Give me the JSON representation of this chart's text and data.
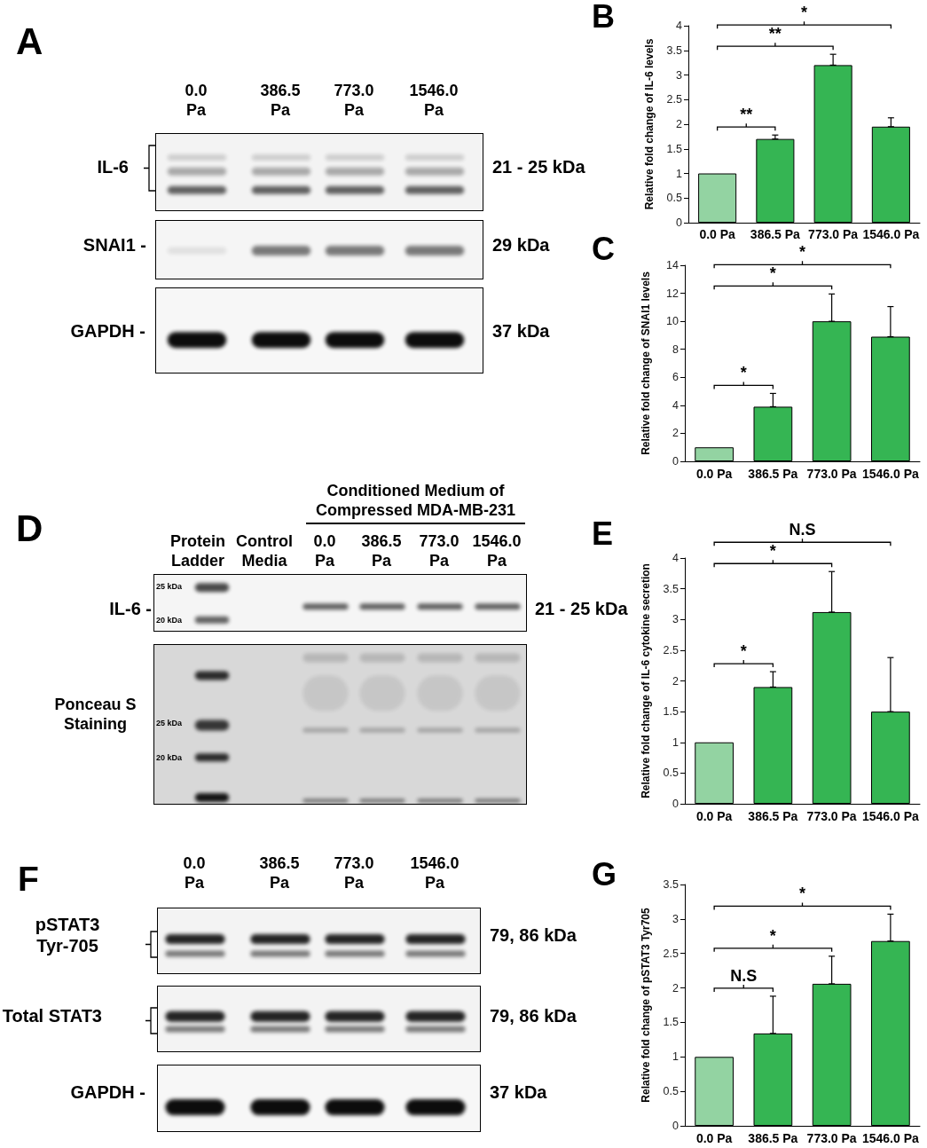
{
  "chart_data": [
    {
      "type": "other",
      "title": "A",
      "categories": [
        "0.0 Pa",
        "386.5 Pa",
        "773.0 Pa",
        "1546.0 Pa"
      ],
      "y_categories": [
        "IL-6",
        "SNAI1 -",
        "GAPDH -"
      ],
      "y2_categories": [
        "21 - 25 kDa",
        "29 kDa",
        "37 kDa"
      ]
    },
    {
      "type": "bar",
      "title": "B",
      "ylabel": "Relative fold change of IL-6 levels",
      "categories": [
        "0.0 Pa",
        "386.5 Pa",
        "773.0 Pa",
        "1546.0 Pa"
      ],
      "values": [
        1,
        1.7,
        3.2,
        1.95
      ],
      "colors": [
        "#93d3a2",
        "#35b553",
        "#35b553",
        "#35b553"
      ],
      "errors": [
        null,
        [
          1.7,
          1.78
        ],
        [
          3.2,
          3.42
        ],
        [
          1.95,
          2.13
        ]
      ],
      "ylim": [
        0,
        4
      ],
      "yticks": [
        0,
        0.5,
        1,
        1.5,
        2,
        2.5,
        3,
        3.5,
        4
      ],
      "annotations": [
        "**",
        "**",
        "*"
      ]
    },
    {
      "type": "bar",
      "title": "C",
      "ylabel": "Relative fold change of SNAI1 levels",
      "categories": [
        "0.0 Pa",
        "386.5 Pa",
        "773.0 Pa",
        "1546.0 Pa"
      ],
      "values": [
        1,
        3.9,
        10,
        8.9
      ],
      "colors": [
        "#93d3a2",
        "#35b553",
        "#35b553",
        "#35b553"
      ],
      "errors": [
        null,
        [
          3.9,
          4.85
        ],
        [
          10,
          11.95
        ],
        [
          8.9,
          11.05
        ]
      ],
      "ylim": [
        0,
        14
      ],
      "yticks": [
        0,
        2,
        4,
        6,
        8,
        10,
        12,
        14
      ],
      "annotations": [
        "*",
        "*",
        "*"
      ]
    },
    {
      "type": "other",
      "title": "D",
      "subtitle": "Conditioned Medium of Compressed MDA-MB-231",
      "categories": [
        "Protein Ladder",
        "Control Media",
        "0.0 Pa",
        "386.5 Pa",
        "773.0 Pa",
        "1546.0 Pa"
      ],
      "y_categories": [
        "IL-6 -",
        "Ponceau S Staining"
      ],
      "y2_categories": [
        "21 - 25 kDa",
        null
      ],
      "annotations": [
        "25 kDa",
        "20 kDa",
        "25 kDa",
        "20 kDa"
      ]
    },
    {
      "type": "bar",
      "title": "E",
      "ylabel": "Relative fold change of IL-6 cytokine secretion",
      "categories": [
        "0.0 Pa",
        "386.5 Pa",
        "773.0 Pa",
        "1546.0 Pa"
      ],
      "values": [
        1,
        1.9,
        3.12,
        1.5
      ],
      "colors": [
        "#93d3a2",
        "#35b553",
        "#35b553",
        "#35b553"
      ],
      "errors": [
        null,
        [
          1.9,
          2.15
        ],
        [
          3.12,
          3.78
        ],
        [
          1.5,
          2.38
        ]
      ],
      "ylim": [
        0,
        4
      ],
      "yticks": [
        0,
        0.5,
        1,
        1.5,
        2,
        2.5,
        3,
        3.5,
        4
      ],
      "annotations": [
        "*",
        "*",
        "N.S"
      ]
    },
    {
      "type": "other",
      "title": "F",
      "categories": [
        "0.0 Pa",
        "386.5 Pa",
        "773.0 Pa",
        "1546.0 Pa"
      ],
      "y_categories": [
        "pSTAT3 Tyr-705",
        "Total STAT3",
        "GAPDH -"
      ],
      "y2_categories": [
        "79, 86 kDa",
        "79, 86 kDa",
        "37 kDa"
      ]
    },
    {
      "type": "bar",
      "title": "G",
      "ylabel": "Relative fold change of pSTAT3 Tyr705",
      "categories": [
        "0.0 Pa",
        "386.5 Pa",
        "773.0 Pa",
        "1546.0 Pa"
      ],
      "values": [
        1,
        1.34,
        2.06,
        2.68
      ],
      "colors": [
        "#93d3a2",
        "#35b553",
        "#35b553",
        "#35b553"
      ],
      "errors": [
        null,
        [
          1.34,
          1.88
        ],
        [
          2.06,
          2.46
        ],
        [
          2.68,
          3.07
        ]
      ],
      "ylim": [
        0,
        3.5
      ],
      "yticks": [
        0,
        0.5,
        1,
        1.5,
        2,
        2.5,
        3,
        3.5
      ],
      "annotations": [
        "N.S",
        "*",
        "*"
      ]
    }
  ]
}
